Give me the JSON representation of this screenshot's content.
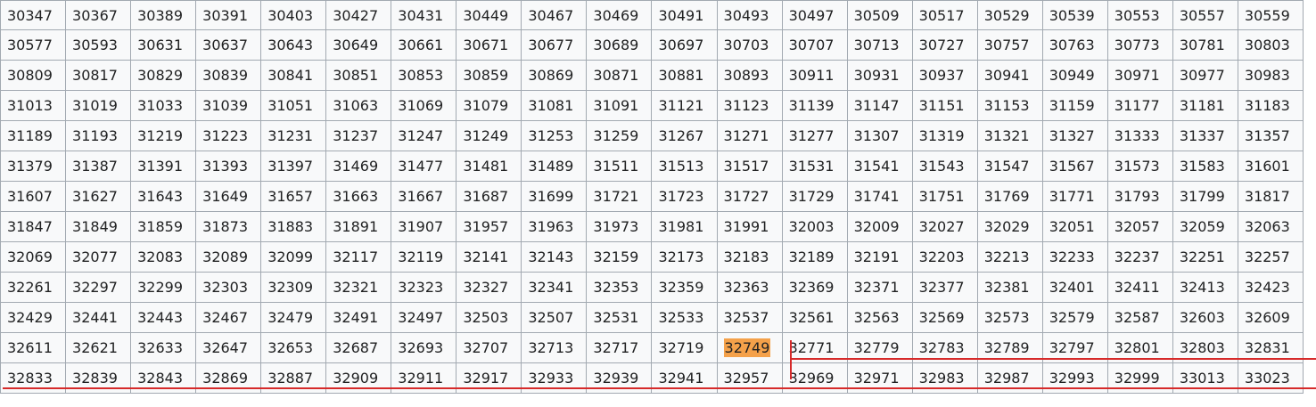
{
  "colors": {
    "highlight": "#f4a14a",
    "strike": "#d62a2a",
    "border": "#a2a9b1",
    "cell_bg": "#f8f9fa"
  },
  "table": {
    "rows": [
      [
        "30347",
        "30367",
        "30389",
        "30391",
        "30403",
        "30427",
        "30431",
        "30449",
        "30467",
        "30469",
        "30491",
        "30493",
        "30497",
        "30509",
        "30517",
        "30529",
        "30539",
        "30553",
        "30557",
        "30559"
      ],
      [
        "30577",
        "30593",
        "30631",
        "30637",
        "30643",
        "30649",
        "30661",
        "30671",
        "30677",
        "30689",
        "30697",
        "30703",
        "30707",
        "30713",
        "30727",
        "30757",
        "30763",
        "30773",
        "30781",
        "30803"
      ],
      [
        "30809",
        "30817",
        "30829",
        "30839",
        "30841",
        "30851",
        "30853",
        "30859",
        "30869",
        "30871",
        "30881",
        "30893",
        "30911",
        "30931",
        "30937",
        "30941",
        "30949",
        "30971",
        "30977",
        "30983"
      ],
      [
        "31013",
        "31019",
        "31033",
        "31039",
        "31051",
        "31063",
        "31069",
        "31079",
        "31081",
        "31091",
        "31121",
        "31123",
        "31139",
        "31147",
        "31151",
        "31153",
        "31159",
        "31177",
        "31181",
        "31183"
      ],
      [
        "31189",
        "31193",
        "31219",
        "31223",
        "31231",
        "31237",
        "31247",
        "31249",
        "31253",
        "31259",
        "31267",
        "31271",
        "31277",
        "31307",
        "31319",
        "31321",
        "31327",
        "31333",
        "31337",
        "31357"
      ],
      [
        "31379",
        "31387",
        "31391",
        "31393",
        "31397",
        "31469",
        "31477",
        "31481",
        "31489",
        "31511",
        "31513",
        "31517",
        "31531",
        "31541",
        "31543",
        "31547",
        "31567",
        "31573",
        "31583",
        "31601"
      ],
      [
        "31607",
        "31627",
        "31643",
        "31649",
        "31657",
        "31663",
        "31667",
        "31687",
        "31699",
        "31721",
        "31723",
        "31727",
        "31729",
        "31741",
        "31751",
        "31769",
        "31771",
        "31793",
        "31799",
        "31817"
      ],
      [
        "31847",
        "31849",
        "31859",
        "31873",
        "31883",
        "31891",
        "31907",
        "31957",
        "31963",
        "31973",
        "31981",
        "31991",
        "32003",
        "32009",
        "32027",
        "32029",
        "32051",
        "32057",
        "32059",
        "32063"
      ],
      [
        "32069",
        "32077",
        "32083",
        "32089",
        "32099",
        "32117",
        "32119",
        "32141",
        "32143",
        "32159",
        "32173",
        "32183",
        "32189",
        "32191",
        "32203",
        "32213",
        "32233",
        "32237",
        "32251",
        "32257"
      ],
      [
        "32261",
        "32297",
        "32299",
        "32303",
        "32309",
        "32321",
        "32323",
        "32327",
        "32341",
        "32353",
        "32359",
        "32363",
        "32369",
        "32371",
        "32377",
        "32381",
        "32401",
        "32411",
        "32413",
        "32423"
      ],
      [
        "32429",
        "32441",
        "32443",
        "32467",
        "32479",
        "32491",
        "32497",
        "32503",
        "32507",
        "32531",
        "32533",
        "32537",
        "32561",
        "32563",
        "32569",
        "32573",
        "32579",
        "32587",
        "32603",
        "32609"
      ],
      [
        "32611",
        "32621",
        "32633",
        "32647",
        "32653",
        "32687",
        "32693",
        "32707",
        "32713",
        "32717",
        "32719",
        "32749",
        "32771",
        "32779",
        "32783",
        "32789",
        "32797",
        "32801",
        "32803",
        "32831"
      ],
      [
        "32833",
        "32839",
        "32843",
        "32869",
        "32887",
        "32909",
        "32911",
        "32917",
        "32933",
        "32939",
        "32941",
        "32957",
        "32969",
        "32971",
        "32983",
        "32987",
        "32993",
        "32999",
        "33013",
        "33023"
      ]
    ],
    "highlighted_value": "32749"
  }
}
